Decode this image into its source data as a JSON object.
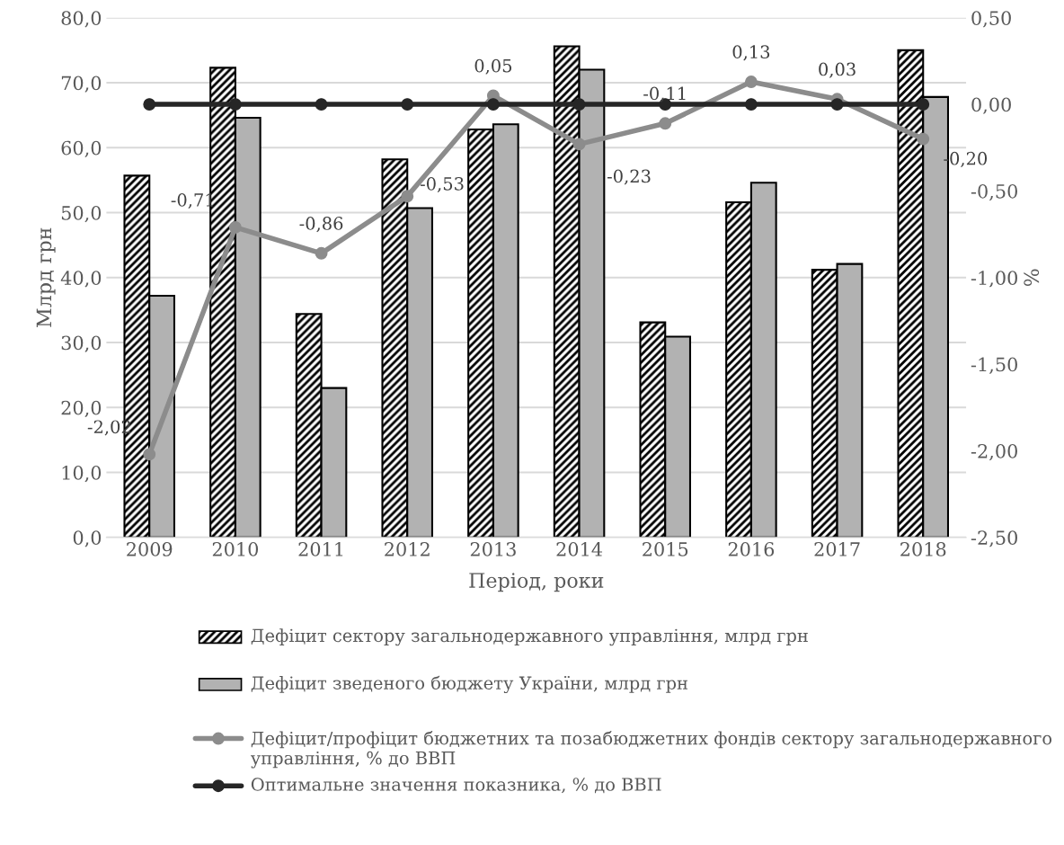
{
  "chart_data": {
    "type": "bar",
    "categories": [
      "2009",
      "2010",
      "2011",
      "2012",
      "2013",
      "2014",
      "2015",
      "2016",
      "2017",
      "2018"
    ],
    "series": [
      {
        "name": "Дефіцит сектору загальнодержавного управління, млрд грн",
        "color": "#000000",
        "values": [
          55.7,
          72.3,
          34.4,
          58.2,
          62.8,
          75.6,
          33.1,
          51.6,
          41.2,
          75.0
        ]
      },
      {
        "name": "Дефіцит зведеного бюджету України, млрд грн",
        "color": "#b2b2b2",
        "values": [
          37.2,
          64.6,
          23.0,
          50.7,
          63.6,
          72.0,
          30.9,
          54.6,
          42.1,
          67.8
        ]
      },
      {
        "name": "Дефіцит/профіцит бюджетних та позабюджетних фондів сектору загальнодержавного управління, % до ВВП",
        "type": "line",
        "axis": "y2",
        "color": "#8c8c8c",
        "marker": "circle",
        "values": [
          -2.02,
          -0.71,
          -0.86,
          -0.53,
          0.05,
          -0.23,
          -0.11,
          0.13,
          0.03,
          -0.2
        ],
        "value_labels": [
          "-2,02",
          "-0,71",
          "-0,86",
          "-0,53",
          "0,05",
          "-0,23",
          "-0,11",
          "0,13",
          "0,03",
          "-0,20"
        ]
      },
      {
        "name": "Оптимальне значення показника, % до ВВП",
        "type": "line",
        "axis": "y2",
        "color": "#262626",
        "marker": "circle",
        "values": [
          0,
          0,
          0,
          0,
          0,
          0,
          0,
          0,
          0,
          0
        ]
      }
    ],
    "xlabel": "Період, роки",
    "ylabel": "Млрд грн",
    "y2label": "%",
    "ylim": [
      0,
      80
    ],
    "yticks": [
      {
        "value": 0,
        "label": "0,0"
      },
      {
        "value": 10,
        "label": "10,0"
      },
      {
        "value": 20,
        "label": "20,0"
      },
      {
        "value": 30,
        "label": "30,0"
      },
      {
        "value": 40,
        "label": "40,0"
      },
      {
        "value": 50,
        "label": "50,0"
      },
      {
        "value": 60,
        "label": "60,0"
      },
      {
        "value": 70,
        "label": "70,0"
      },
      {
        "value": 80,
        "label": "80,0"
      }
    ],
    "y2lim": [
      -2.5,
      0.5
    ],
    "y2ticks": [
      {
        "value": -2.5,
        "label": "-2,50"
      },
      {
        "value": -2,
        "label": "-2,00"
      },
      {
        "value": -1.5,
        "label": "-1,50"
      },
      {
        "value": -1,
        "label": "-1,00"
      },
      {
        "value": -0.5,
        "label": "-0,50"
      },
      {
        "value": 0,
        "label": "0,00"
      },
      {
        "value": 0.5,
        "label": "0,50"
      }
    ],
    "grid": "y",
    "legend": "bottom"
  }
}
